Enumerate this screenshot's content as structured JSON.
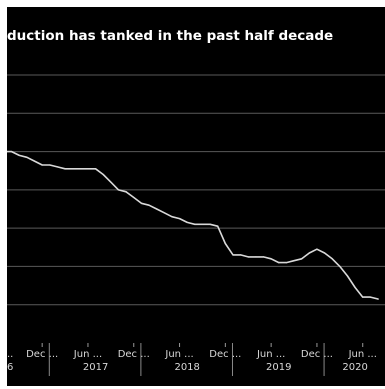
{
  "chart_data": {
    "type": "line",
    "title": "duction has tanked in the past half decade",
    "xlabel": "",
    "ylabel": "",
    "grid": true,
    "line_color": "#d9d9d9",
    "background_color": "#000000",
    "x_tick_labels": [
      "y ...",
      "Dec ...",
      "Jun ...",
      "Dec ...",
      "Jun ...",
      "Dec ...",
      "Jun ...",
      "Dec ...",
      "Jun ..."
    ],
    "year_labels": [
      "6",
      "2017",
      "2018",
      "2019",
      "2020"
    ],
    "x": [
      "2016-07",
      "2016-08",
      "2016-09",
      "2016-10",
      "2016-11",
      "2016-12",
      "2017-01",
      "2017-02",
      "2017-03",
      "2017-04",
      "2017-05",
      "2017-06",
      "2017-07",
      "2017-08",
      "2017-09",
      "2017-10",
      "2017-11",
      "2017-12",
      "2018-01",
      "2018-02",
      "2018-03",
      "2018-04",
      "2018-05",
      "2018-06",
      "2018-07",
      "2018-08",
      "2018-09",
      "2018-10",
      "2018-11",
      "2018-12",
      "2019-01",
      "2019-02",
      "2019-03",
      "2019-04",
      "2019-05",
      "2019-06",
      "2019-07",
      "2019-08",
      "2019-09",
      "2019-10",
      "2019-11",
      "2019-12",
      "2020-01",
      "2020-02",
      "2020-03",
      "2020-04",
      "2020-05",
      "2020-06",
      "2020-07",
      "2020-08"
    ],
    "series": [
      {
        "values": [
          100,
          100,
          98,
          97,
          95,
          93,
          93,
          92,
          91,
          91,
          91,
          91,
          91,
          88,
          84,
          80,
          79,
          76,
          73,
          72,
          70,
          68,
          66,
          65,
          63,
          62,
          62,
          62,
          61,
          52,
          46,
          46,
          45,
          45,
          45,
          44,
          42,
          42,
          43,
          44,
          47,
          49,
          47,
          44,
          40,
          35,
          29,
          24,
          24,
          23
        ]
      }
    ]
  }
}
